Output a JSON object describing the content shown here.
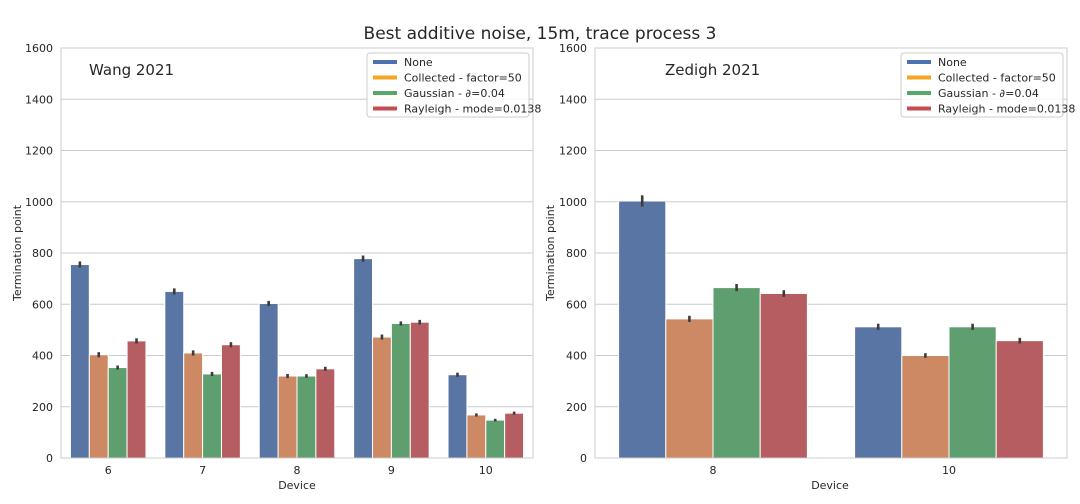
{
  "figure": {
    "title": "Best additive noise, 15m, trace process 3"
  },
  "legend": {
    "entries": [
      {
        "label": "None",
        "color": "#4c72b0"
      },
      {
        "label": "Collected - factor=50",
        "color": "#f5a623"
      },
      {
        "label": "Gaussian - ∂=0.04",
        "color": "#55a868"
      },
      {
        "label": "Rayleigh - mode=0.0138",
        "color": "#c44e52"
      }
    ],
    "placement": "top-right"
  },
  "chart_data": [
    {
      "type": "bar",
      "title": "Wang 2021",
      "xlabel": "Device",
      "ylabel": "Termination point",
      "ylim": [
        0,
        1600
      ],
      "yticks": [
        0,
        200,
        400,
        600,
        800,
        1000,
        1200,
        1400,
        1600
      ],
      "grid": true,
      "categories": [
        "6",
        "7",
        "8",
        "9",
        "10"
      ],
      "series": [
        {
          "name": "None",
          "color": "#5975a4",
          "values": [
            755,
            650,
            603,
            778,
            325
          ],
          "err": [
            12,
            12,
            10,
            12,
            8
          ]
        },
        {
          "name": "Collected - factor=50",
          "color": "#cc8963",
          "values": [
            403,
            410,
            320,
            472,
            168
          ],
          "err": [
            10,
            10,
            8,
            10,
            6
          ]
        },
        {
          "name": "Gaussian - ∂=0.04",
          "color": "#5f9e6e",
          "values": [
            353,
            328,
            320,
            525,
            148
          ],
          "err": [
            8,
            8,
            7,
            8,
            5
          ]
        },
        {
          "name": "Rayleigh - mode=0.0138",
          "color": "#b55d60",
          "values": [
            457,
            442,
            348,
            530,
            175
          ],
          "err": [
            10,
            10,
            8,
            9,
            6
          ]
        }
      ]
    },
    {
      "type": "bar",
      "title": "Zedigh 2021",
      "xlabel": "Device",
      "ylabel": "Termination point",
      "ylim": [
        0,
        1600
      ],
      "yticks": [
        0,
        200,
        400,
        600,
        800,
        1000,
        1200,
        1400,
        1600
      ],
      "grid": true,
      "categories": [
        "8",
        "10"
      ],
      "series": [
        {
          "name": "None",
          "color": "#5975a4",
          "values": [
            1003,
            512
          ],
          "err": [
            22,
            12
          ]
        },
        {
          "name": "Collected - factor=50",
          "color": "#cc8963",
          "values": [
            543,
            400
          ],
          "err": [
            12,
            9
          ]
        },
        {
          "name": "Gaussian - ∂=0.04",
          "color": "#5f9e6e",
          "values": [
            665,
            512
          ],
          "err": [
            14,
            12
          ]
        },
        {
          "name": "Rayleigh - mode=0.0138",
          "color": "#b55d60",
          "values": [
            642,
            458
          ],
          "err": [
            13,
            11
          ]
        }
      ]
    }
  ]
}
